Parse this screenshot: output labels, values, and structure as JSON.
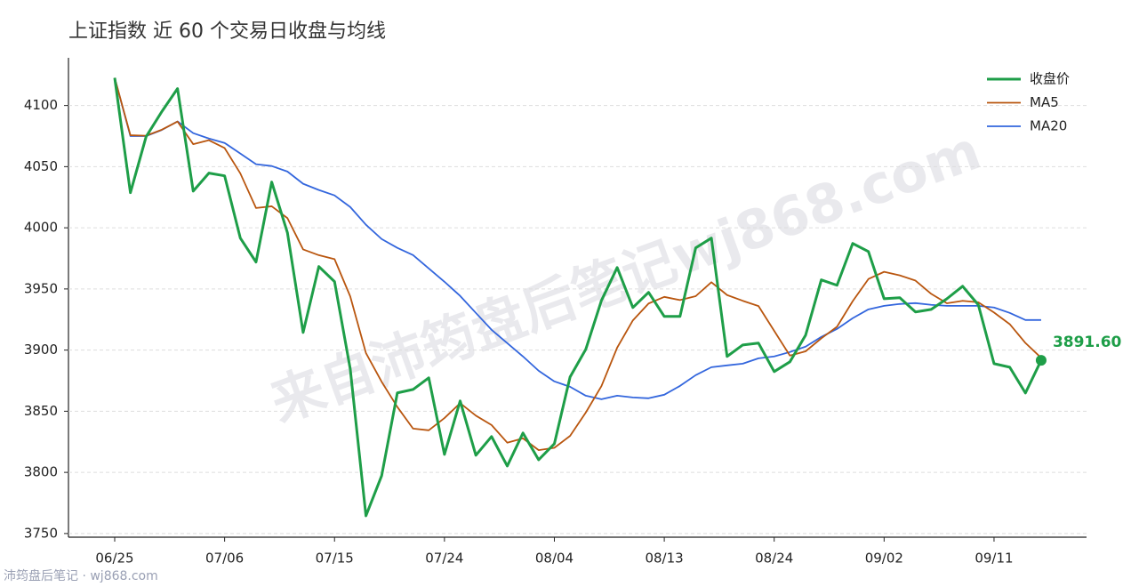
{
  "chart_data": {
    "type": "line",
    "title": "上证指数 近 60 个交易日收盘与均线",
    "watermark": "来自沛筠盘后笔记wj868.com",
    "footer": "沛筠盘后笔记 · wj868.com",
    "categories": [
      "06/25",
      null,
      null,
      null,
      null,
      null,
      null,
      "07/06",
      null,
      null,
      null,
      null,
      null,
      null,
      "07/15",
      null,
      null,
      null,
      null,
      null,
      null,
      "07/24",
      null,
      null,
      null,
      null,
      null,
      null,
      "08/04",
      null,
      null,
      null,
      null,
      null,
      null,
      "08/13",
      null,
      null,
      null,
      null,
      null,
      null,
      "08/24",
      null,
      null,
      null,
      null,
      null,
      null,
      "09/02",
      null,
      null,
      null,
      null,
      null,
      null,
      "09/11",
      null,
      null,
      null
    ],
    "series": [
      {
        "name": "收盘价",
        "color": "#1e9e48",
        "width": 3,
        "values": [
          4122.6,
          4028.7,
          4074.5,
          4095,
          4113.8,
          4030,
          4044.7,
          4042.5,
          3991.6,
          3972,
          4037.4,
          3996,
          3914.4,
          3968.3,
          3956,
          3884.6,
          3764.5,
          3797.2,
          3865,
          3867.8,
          3877.3,
          3814.7,
          3858.4,
          3814,
          3829.3,
          3805.2,
          3832.2,
          3810.3,
          3823.4,
          3878,
          3900.6,
          3940.6,
          3967.5,
          3934.8,
          3947.2,
          3927.5,
          3927.5,
          3983.6,
          3991.6,
          3894.8,
          3904.2,
          3905.7,
          3882.4,
          3890.4,
          3912.2,
          3957.4,
          3953,
          3987.2,
          3980.6,
          3942,
          3942.8,
          3931.2,
          3933.3,
          3942,
          3952.2,
          3937,
          3888.9,
          3886,
          3864.9,
          3891.6
        ],
        "value_labels": [
          null,
          null,
          null,
          null,
          null,
          null,
          null,
          null,
          null,
          null,
          null,
          null,
          null,
          null,
          null,
          null,
          null,
          null,
          null,
          null,
          null,
          null,
          null,
          null,
          null,
          null,
          null,
          null,
          null,
          null,
          null,
          null,
          null,
          null,
          null,
          null,
          null,
          null,
          null,
          null,
          null,
          null,
          null,
          null,
          null,
          null,
          null,
          null,
          null,
          null,
          null,
          null,
          null,
          null,
          null,
          null,
          null,
          null,
          null,
          "3891.60"
        ]
      },
      {
        "name": "MA5",
        "color": "#b9560f",
        "width": 1.8,
        "values": [
          4122.6,
          4075.7,
          4075.3,
          4080.2,
          4086.9,
          4068.4,
          4071.6,
          4065.2,
          4044.5,
          4016.2,
          4017.6,
          4007.9,
          3982.3,
          3977.6,
          3974.4,
          3943.9,
          3897.6,
          3874.1,
          3853.5,
          3835.8,
          3834.4,
          3844.4,
          3856.6,
          3846.4,
          3838.7,
          3824.3,
          3827.8,
          3818.2,
          3820.1,
          3829.8,
          3848.9,
          3870.6,
          3902.0,
          3924.3,
          3938.1,
          3943.5,
          3940.9,
          3944.1,
          3955.5,
          3945.0,
          3940.3,
          3936.0,
          3915.7,
          3895.5,
          3899.0,
          3909.6,
          3919.1,
          3940.0,
          3958.1,
          3964.0,
          3961.1,
          3956.8,
          3946.0,
          3938.3,
          3940.3,
          3939.1,
          3930.7,
          3921.2,
          3905.8,
          3893.7
        ]
      },
      {
        "name": "MA20",
        "color": "#3366dd",
        "width": 1.8,
        "values": [
          4122.6,
          4075,
          4075,
          4080,
          4087,
          4077.4,
          4073,
          4069.4,
          4060.7,
          4052,
          4050.5,
          4046,
          4036,
          4030.9,
          4026.5,
          4017,
          4002.5,
          3990.8,
          3983.6,
          3977.7,
          3966.8,
          3955.9,
          3944.3,
          3930.4,
          3916.6,
          3905.7,
          3894.8,
          3883.1,
          3874.4,
          3870,
          3862.7,
          3859.8,
          3862.7,
          3861.3,
          3860.6,
          3863.5,
          3870.7,
          3879.5,
          3886,
          3887.5,
          3888.9,
          3893.3,
          3894.8,
          3898.4,
          3902.8,
          3910.8,
          3917.3,
          3926.1,
          3933.3,
          3936.2,
          3937.7,
          3938.4,
          3937,
          3936.2,
          3936.2,
          3936.2,
          3934.8,
          3930.4,
          3924.6,
          3924.6
        ]
      }
    ],
    "ylim": [
      3747,
      4139
    ],
    "yticks": [
      3750,
      3800,
      3850,
      3900,
      3950,
      4000,
      4050,
      4100
    ],
    "grid": true,
    "legend": "upper right"
  }
}
